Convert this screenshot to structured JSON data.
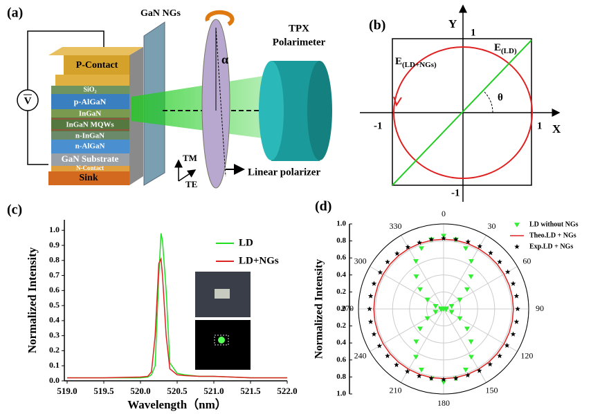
{
  "panels": {
    "a": "(a)",
    "b": "(b)",
    "c": "(c)",
    "d": "(d)"
  },
  "diagram_a": {
    "ngs": "GaN NGs",
    "tpx": "TPX",
    "polarimeter": "Polarimeter",
    "alpha": "α",
    "meter": "V",
    "layers": [
      "P-Contact",
      "SiO₂",
      "p-AlGaN",
      "InGaN",
      "InGaN MQWs",
      "n-InGaN",
      "n-AlGaN",
      "GaN Substrate",
      "N-Contact",
      "Sink"
    ],
    "tm": "TM",
    "te": "TE",
    "polarizer": "Linear polarizer"
  },
  "diagram_b": {
    "y": "Y",
    "x": "X",
    "y_top": "1",
    "y_bottom": "-1",
    "x_left": "-1",
    "x_right": "1",
    "theta": "θ",
    "e_ld": {
      "main": "E",
      "sub": "(LD)"
    },
    "e_ngs": {
      "main": "E",
      "sub": "(LD+NGs)"
    }
  },
  "chart_data": [
    {
      "type": "line",
      "xlabel": "Wavelength（nm）",
      "ylabel": "Normalized Intensity",
      "x": [
        519.0,
        519.5,
        520.0,
        520.1,
        520.15,
        520.2,
        520.25,
        520.28,
        520.3,
        520.35,
        520.4,
        520.5,
        520.6,
        520.8,
        521.0,
        521.5,
        522.0
      ],
      "series": [
        {
          "name": "LD",
          "color": "#22dd22",
          "values": [
            0.02,
            0.02,
            0.02,
            0.025,
            0.04,
            0.1,
            0.7,
            0.98,
            0.93,
            0.6,
            0.12,
            0.05,
            0.04,
            0.03,
            0.03,
            0.02,
            0.02
          ]
        },
        {
          "name": "LD+NGs",
          "color": "#dd2222",
          "values": [
            0.02,
            0.02,
            0.025,
            0.03,
            0.06,
            0.3,
            0.78,
            0.81,
            0.7,
            0.3,
            0.08,
            0.04,
            0.035,
            0.03,
            0.03,
            0.02,
            0.02
          ]
        }
      ],
      "xlim": [
        519,
        522
      ],
      "ylim": [
        0,
        1.07
      ],
      "xticks": [
        {
          "value": 519,
          "label": "519.0"
        },
        519.5,
        {
          "value": 520,
          "label": "520.0"
        },
        520.5,
        {
          "value": 521,
          "label": "521.0"
        },
        521.5,
        {
          "value": 522,
          "label": "522.0"
        }
      ],
      "yticks": [
        {
          "value": 0,
          "label": "0.0"
        },
        0.1,
        0.2,
        0.3,
        0.4,
        0.5,
        0.6,
        0.7,
        0.8,
        0.9,
        {
          "value": 1,
          "label": "1.0"
        }
      ]
    },
    {
      "type": "polar",
      "ylabel": "Normalized Intensity",
      "theta": [
        0,
        10,
        20,
        30,
        40,
        50,
        60,
        70,
        80,
        90,
        100,
        110,
        120,
        130,
        140,
        150,
        160,
        170,
        180,
        190,
        200,
        210,
        220,
        230,
        240,
        250,
        260,
        270,
        280,
        290,
        300,
        310,
        320,
        330,
        340,
        350
      ],
      "thetaticks": [
        0,
        30,
        60,
        90,
        120,
        150,
        180,
        210,
        240,
        270,
        300,
        330
      ],
      "rlim": [
        0,
        1
      ],
      "rticks": [
        {
          "value": 0,
          "label": "0.0"
        },
        0.2,
        0.4,
        0.6,
        0.8,
        {
          "value": 1,
          "label": "1.0"
        }
      ],
      "series": [
        {
          "name": "LD without NGs",
          "color": "#33ee33",
          "marker": "triangle",
          "values": [
            0.86,
            0.83,
            0.76,
            0.65,
            0.5,
            0.36,
            0.22,
            0.1,
            0.03,
            0,
            0.03,
            0.1,
            0.22,
            0.36,
            0.5,
            0.65,
            0.76,
            0.83,
            0.86,
            0.83,
            0.76,
            0.65,
            0.5,
            0.36,
            0.22,
            0.1,
            0.03,
            0,
            0.03,
            0.1,
            0.22,
            0.36,
            0.5,
            0.65,
            0.76,
            0.83
          ]
        },
        {
          "name": "Theo.LD + NGs",
          "color": "#dd2222",
          "marker": "line",
          "values": [
            0.82,
            0.82,
            0.82,
            0.82,
            0.82,
            0.82,
            0.82,
            0.82,
            0.82,
            0.82,
            0.82,
            0.82,
            0.82,
            0.82,
            0.82,
            0.82,
            0.82,
            0.82,
            0.82,
            0.82,
            0.82,
            0.82,
            0.82,
            0.82,
            0.82,
            0.82,
            0.82,
            0.82,
            0.82,
            0.82,
            0.82,
            0.82,
            0.82,
            0.82,
            0.82,
            0.82
          ]
        },
        {
          "name": "Exp.LD + NGs",
          "color": "#000000",
          "marker": "star",
          "values": [
            0.83,
            0.83,
            0.84,
            0.85,
            0.86,
            0.86,
            0.87,
            0.87,
            0.87,
            0.87,
            0.87,
            0.87,
            0.86,
            0.86,
            0.85,
            0.84,
            0.83,
            0.83,
            0.83,
            0.83,
            0.84,
            0.85,
            0.86,
            0.86,
            0.87,
            0.87,
            0.87,
            0.87,
            0.87,
            0.87,
            0.86,
            0.86,
            0.85,
            0.84,
            0.83,
            0.83
          ]
        }
      ]
    }
  ]
}
